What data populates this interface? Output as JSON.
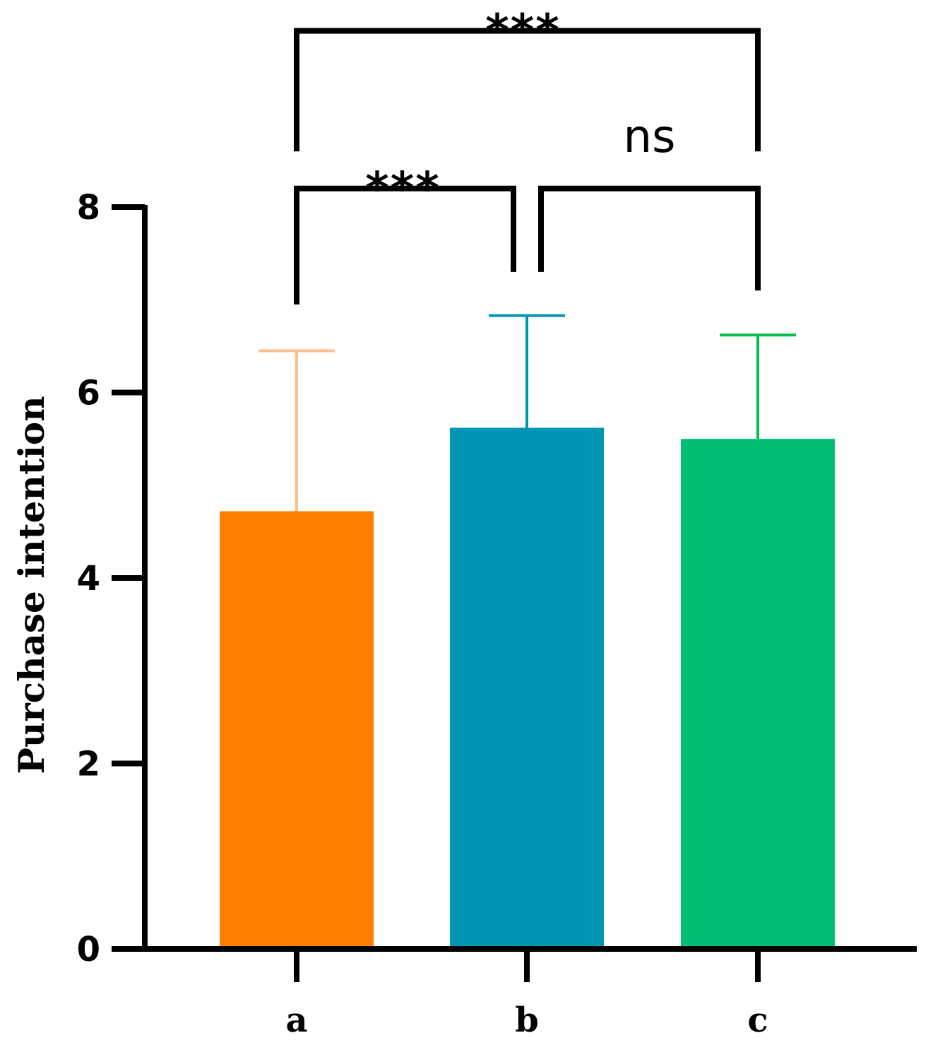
{
  "chart_data": {
    "type": "bar",
    "title": "",
    "xlabel": "",
    "ylabel": "Purchase intention",
    "ylim": [
      0,
      8
    ],
    "yticks": [
      0,
      2,
      4,
      6,
      8
    ],
    "categories": [
      "a",
      "b",
      "c"
    ],
    "values": [
      4.72,
      5.62,
      5.5
    ],
    "error_upper": [
      6.45,
      6.83,
      6.62
    ],
    "colors": [
      "#ff8000",
      "#0095b5",
      "#00bf73"
    ],
    "error_colors": [
      "#ffbe8c",
      "#0095b5",
      "#00bf4c"
    ],
    "grid": false,
    "legend": "none",
    "significance": [
      {
        "from": 0,
        "to": 2,
        "label": "***",
        "level": 9.9,
        "left_leg": 8.6,
        "right_leg": 8.6
      },
      {
        "from": 0,
        "to": 1,
        "label": "***",
        "level": 8.2,
        "left_leg": 6.95,
        "right_leg": 7.3
      },
      {
        "from": 1,
        "to": 2,
        "label": "ns",
        "level": 8.2,
        "left_leg": 7.3,
        "right_leg": 7.1
      }
    ]
  }
}
